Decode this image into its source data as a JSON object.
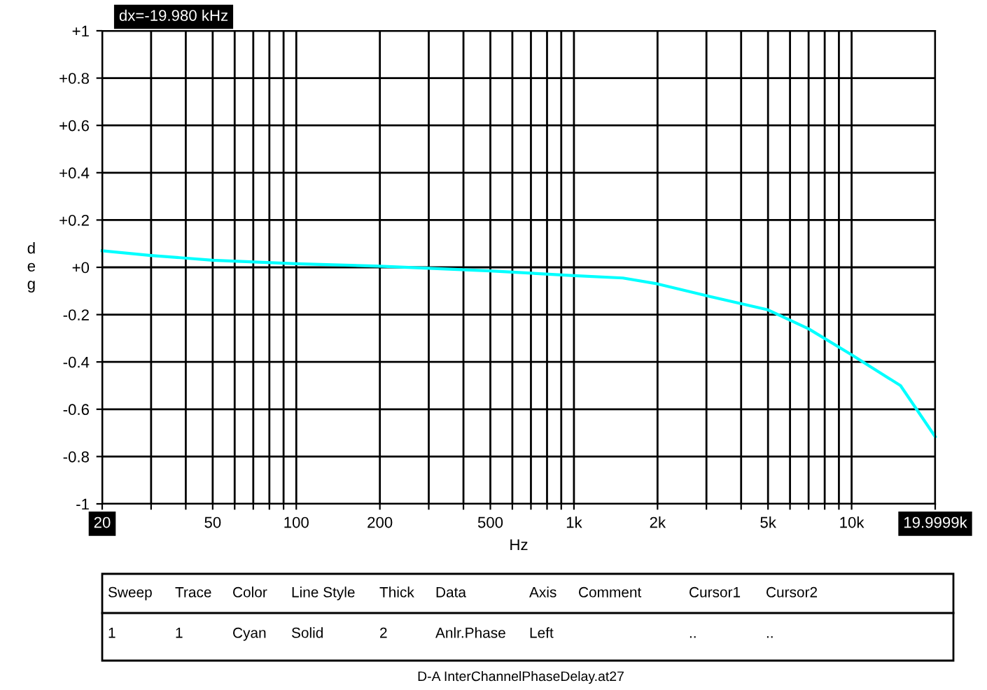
{
  "chart_data": {
    "type": "line",
    "xlabel": "Hz",
    "ylabel": "deg",
    "x": [
      20,
      30,
      50,
      100,
      200,
      500,
      1000,
      1500,
      2000,
      3000,
      5000,
      7000,
      10000,
      15000,
      19999.9
    ],
    "series": [
      {
        "color": "#00ffff",
        "values": [
          0.07,
          0.05,
          0.03,
          0.015,
          0.005,
          -0.015,
          -0.035,
          -0.045,
          -0.07,
          -0.12,
          -0.18,
          -0.26,
          -0.37,
          -0.5,
          -0.716
        ]
      }
    ],
    "log": "x",
    "xlim": [
      20,
      20000
    ],
    "ylim": [
      -1,
      1
    ],
    "xticks": [
      {
        "value": 20,
        "label": "20"
      },
      {
        "value": 30,
        "label": null
      },
      {
        "value": 40,
        "label": null
      },
      50,
      {
        "value": 60,
        "label": null
      },
      {
        "value": 70,
        "label": null
      },
      {
        "value": 80,
        "label": null
      },
      {
        "value": 90,
        "label": null
      },
      100,
      200,
      {
        "value": 300,
        "label": null
      },
      {
        "value": 400,
        "label": null
      },
      500,
      {
        "value": 600,
        "label": null
      },
      {
        "value": 700,
        "label": null
      },
      {
        "value": 800,
        "label": null
      },
      {
        "value": 900,
        "label": null
      },
      {
        "value": 1000,
        "label": "1k"
      },
      {
        "value": 2000,
        "label": "2k"
      },
      {
        "value": 3000,
        "label": null
      },
      {
        "value": 4000,
        "label": null
      },
      {
        "value": 5000,
        "label": "5k"
      },
      {
        "value": 6000,
        "label": null
      },
      {
        "value": 7000,
        "label": null
      },
      {
        "value": 8000,
        "label": null
      },
      {
        "value": 9000,
        "label": null
      },
      {
        "value": 10000,
        "label": "10k"
      },
      {
        "value": 19999.9,
        "label": "19.9999k"
      }
    ],
    "yticks": [
      {
        "value": -1,
        "label": "-1"
      },
      {
        "value": -0.8,
        "label": "-0.8"
      },
      {
        "value": -0.6,
        "label": "-0.6"
      },
      {
        "value": -0.4,
        "label": "-0.4"
      },
      {
        "value": -0.2,
        "label": "-0.2"
      },
      {
        "value": 0,
        "label": "+0"
      },
      {
        "value": 0.2,
        "label": "+0.2"
      },
      {
        "value": 0.4,
        "label": "+0.4"
      },
      {
        "value": 0.6,
        "label": "+0.6"
      },
      {
        "value": 0.8,
        "label": "+0.8"
      },
      {
        "value": 1,
        "label": "+1"
      }
    ],
    "grid": true,
    "line_style": "solid",
    "marker": "none",
    "annotations": [
      "dx=-19.980 kHz",
      "Sweep",
      "Trace",
      "Color",
      "Line Style",
      "Thick",
      "Data",
      "Axis",
      "Comment",
      "Cursor1",
      "Cursor2",
      "1",
      "1",
      "Cyan",
      "Solid",
      "2",
      "Anlr.Phase",
      "Left",
      "..",
      "..",
      "D-A InterChannelPhaseDelay.at27"
    ]
  }
}
